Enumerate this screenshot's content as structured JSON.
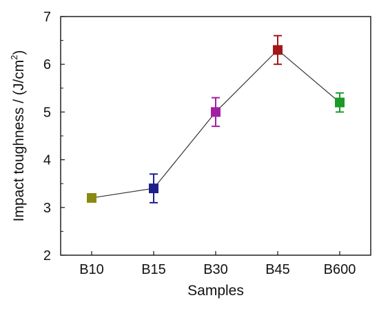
{
  "chart_data": {
    "type": "line",
    "title": "",
    "xlabel": "Samples",
    "ylabel": {
      "text": "Impact toughness / (J/cm",
      "superscript": "2",
      "close": ")"
    },
    "categories": [
      "B10",
      "B15",
      "B30",
      "B45",
      "B600"
    ],
    "series": [
      {
        "values": [
          3.2,
          3.4,
          5.0,
          6.3,
          5.2
        ],
        "errors": [
          0.0,
          0.3,
          0.3,
          0.3,
          0.2
        ],
        "point_colors": [
          "#8a8a12",
          "#1f1f8c",
          "#a020a0",
          "#a01818",
          "#1a9a2a"
        ],
        "line_color": "#333333"
      }
    ],
    "ylim": [
      2,
      7
    ],
    "yticks": [
      "2",
      "3",
      "4",
      "5",
      "6",
      "7"
    ],
    "grid": false,
    "legend": "none"
  }
}
